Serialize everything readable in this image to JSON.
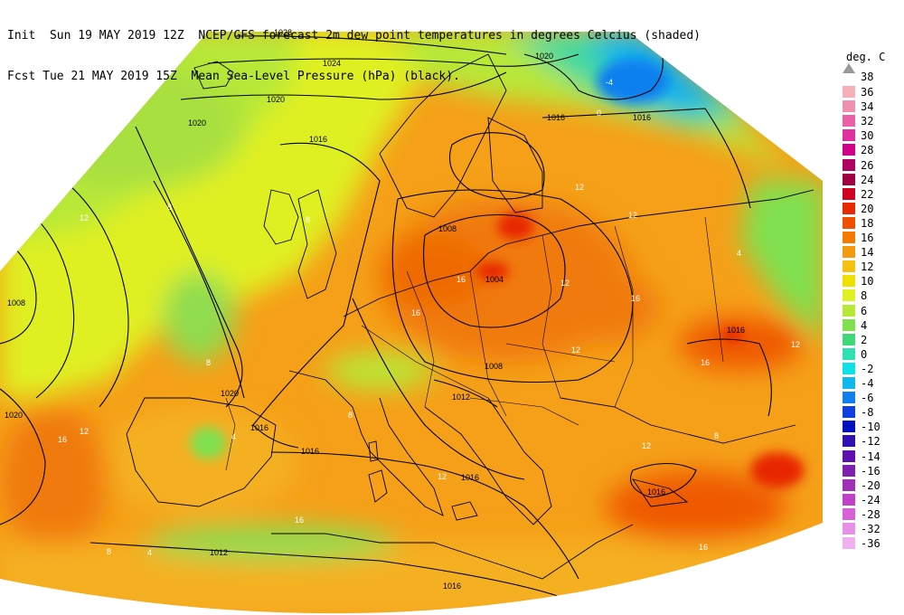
{
  "header": {
    "line1": "Init  Sun 19 MAY 2019 12Z  NCEP/GFS forecast 2m dew point temperatures in degrees Celcius (shaded)",
    "line2": "Fcst Tue 21 MAY 2019 15Z  Mean Sea-Level Pressure (hPa) (black)."
  },
  "legend": {
    "unit": "deg. C",
    "top_value": "38",
    "entries": [
      {
        "label": "36",
        "color": "#f5b0b8"
      },
      {
        "label": "34",
        "color": "#f090b0"
      },
      {
        "label": "32",
        "color": "#ea60a8"
      },
      {
        "label": "30",
        "color": "#e030a0"
      },
      {
        "label": "28",
        "color": "#d00088"
      },
      {
        "label": "26",
        "color": "#b00060"
      },
      {
        "label": "24",
        "color": "#a00040"
      },
      {
        "label": "22",
        "color": "#d00020"
      },
      {
        "label": "20",
        "color": "#e82800"
      },
      {
        "label": "18",
        "color": "#f05000"
      },
      {
        "label": "16",
        "color": "#f57a00"
      },
      {
        "label": "14",
        "color": "#f59a10"
      },
      {
        "label": "12",
        "color": "#f7c010"
      },
      {
        "label": "10",
        "color": "#f0e000"
      },
      {
        "label": "8",
        "color": "#e0f020"
      },
      {
        "label": "6",
        "color": "#b8e838"
      },
      {
        "label": "4",
        "color": "#80e050"
      },
      {
        "label": "2",
        "color": "#40d878"
      },
      {
        "label": "0",
        "color": "#30e0b0"
      },
      {
        "label": "-2",
        "color": "#10e0e8"
      },
      {
        "label": "-4",
        "color": "#10b8f0"
      },
      {
        "label": "-6",
        "color": "#1080f0"
      },
      {
        "label": "-8",
        "color": "#1040e0"
      },
      {
        "label": "-10",
        "color": "#0010c0"
      },
      {
        "label": "-12",
        "color": "#3010b0"
      },
      {
        "label": "-14",
        "color": "#6010b0"
      },
      {
        "label": "-16",
        "color": "#8020b0"
      },
      {
        "label": "-20",
        "color": "#a030b8"
      },
      {
        "label": "-24",
        "color": "#c040c8"
      },
      {
        "label": "-28",
        "color": "#d860d8"
      },
      {
        "label": "-32",
        "color": "#e890e8"
      },
      {
        "label": "-36",
        "color": "#f0b0f0"
      }
    ]
  },
  "isobar_labels": [
    {
      "text": "1028"
    },
    {
      "text": "1024"
    },
    {
      "text": "1020"
    },
    {
      "text": "1020"
    },
    {
      "text": "1016"
    },
    {
      "text": "1016"
    },
    {
      "text": "1020"
    },
    {
      "text": "1016"
    },
    {
      "text": "1008"
    },
    {
      "text": "1004"
    },
    {
      "text": "1008"
    },
    {
      "text": "1008"
    },
    {
      "text": "1020"
    },
    {
      "text": "1020"
    },
    {
      "text": "1016"
    },
    {
      "text": "1016"
    },
    {
      "text": "1012"
    },
    {
      "text": "1016"
    },
    {
      "text": "1012"
    },
    {
      "text": "1016"
    },
    {
      "text": "1016"
    },
    {
      "text": "1016"
    }
  ],
  "dewpoint_labels": [
    {
      "text": "4"
    },
    {
      "text": "-4"
    },
    {
      "text": "0"
    },
    {
      "text": "12"
    },
    {
      "text": "12"
    },
    {
      "text": "12"
    },
    {
      "text": "8"
    },
    {
      "text": "8"
    },
    {
      "text": "16"
    },
    {
      "text": "16"
    },
    {
      "text": "12"
    },
    {
      "text": "16"
    },
    {
      "text": "12"
    },
    {
      "text": "16"
    },
    {
      "text": "8"
    },
    {
      "text": "4"
    },
    {
      "text": "8"
    },
    {
      "text": "12"
    },
    {
      "text": "16"
    },
    {
      "text": "12"
    },
    {
      "text": "16"
    },
    {
      "text": "4"
    },
    {
      "text": "8"
    },
    {
      "text": "12"
    },
    {
      "text": "16"
    },
    {
      "text": "8"
    },
    {
      "text": "4"
    },
    {
      "text": "12"
    }
  ]
}
